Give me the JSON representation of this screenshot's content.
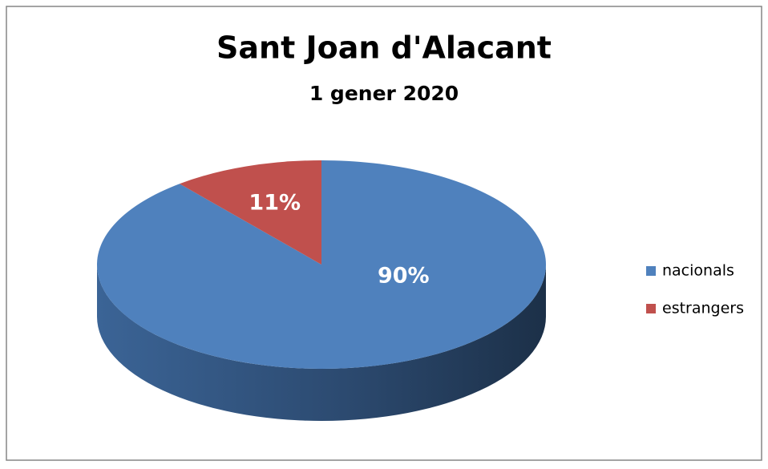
{
  "chart_data": {
    "type": "pie3d",
    "title": "Sant Joan d'Alacant",
    "subtitle": "1 gener 2020",
    "categories": [
      "nacionals",
      "estrangers"
    ],
    "values": [
      90,
      11
    ],
    "value_labels": [
      "90%",
      "11%"
    ],
    "colors": [
      "#4f81bd",
      "#c0504d"
    ],
    "legend": "right"
  }
}
